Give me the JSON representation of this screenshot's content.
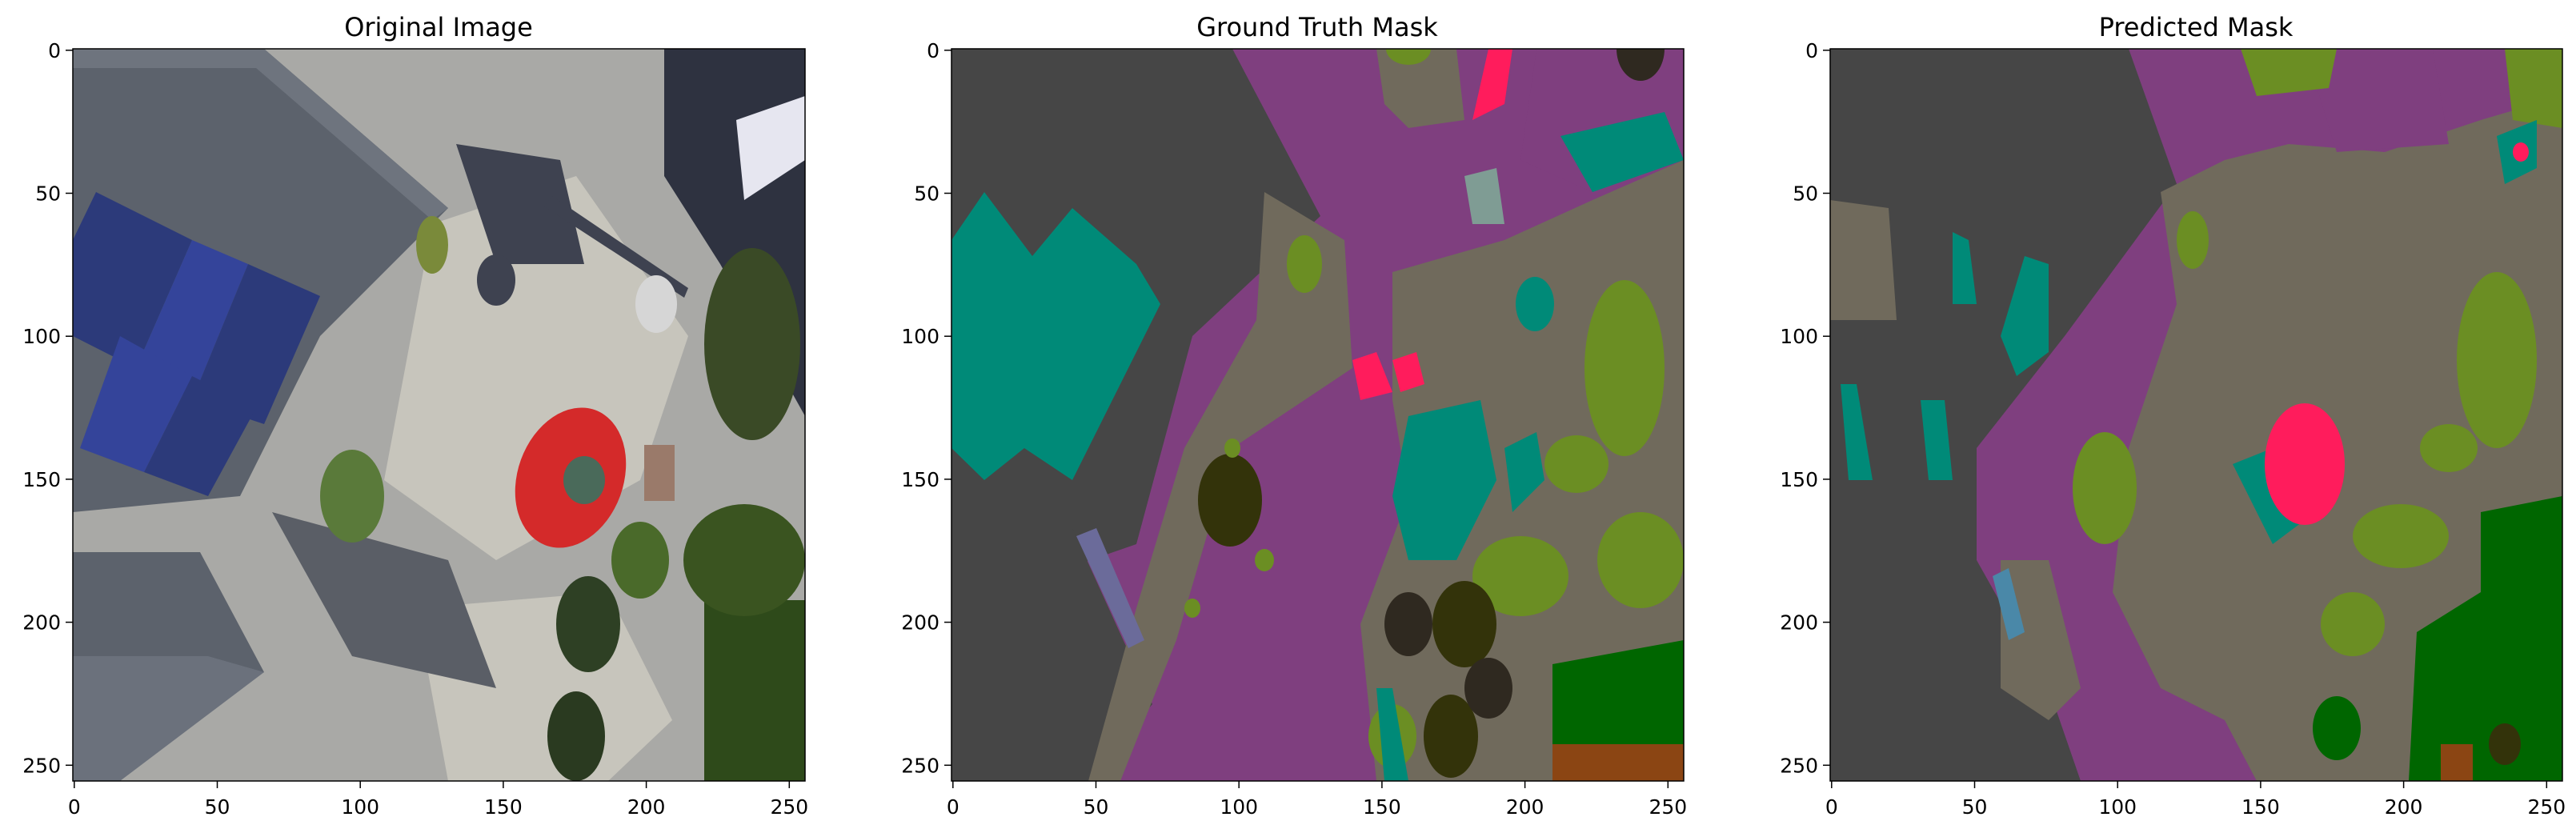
{
  "figure": {
    "panels": [
      {
        "title": "Original Image",
        "image_kind": "aerial-photo",
        "x_ticks": [
          "0",
          "50",
          "100",
          "150",
          "200",
          "250"
        ],
        "y_ticks": [
          "0",
          "50",
          "100",
          "150",
          "200",
          "250"
        ]
      },
      {
        "title": "Ground Truth Mask",
        "image_kind": "segmentation-mask",
        "x_ticks": [
          "0",
          "50",
          "100",
          "150",
          "200",
          "250"
        ],
        "y_ticks": [
          "0",
          "50",
          "100",
          "150",
          "200",
          "250"
        ]
      },
      {
        "title": "Predicted Mask",
        "image_kind": "segmentation-mask",
        "x_ticks": [
          "0",
          "50",
          "100",
          "150",
          "200",
          "250"
        ],
        "y_ticks": [
          "0",
          "50",
          "100",
          "150",
          "200",
          "250"
        ]
      }
    ],
    "axis_range": [
      0,
      255
    ],
    "tick_values": [
      0,
      50,
      100,
      150,
      200,
      250
    ],
    "palette": {
      "building": "#464646",
      "paved": "#7f3f7f",
      "ground": "#706a5c",
      "vegetation": "#6b8e23",
      "tree": "#006600",
      "roof": "#008a78",
      "vehicle": "#ff1c5c",
      "bush": "#33330a",
      "dirt": "#8b4513",
      "window": "#6b6b9a",
      "gray_obj": "#7f9c94",
      "dark_brown": "#2f2920"
    },
    "photo_colors": {
      "roof_gray": "#5c626c",
      "solar_blue": "#2c3a7a",
      "pavement": "#a9a9a6",
      "gravel": "#c7c5bc",
      "shadow": "#3e4250",
      "plant_green": "#5a7a3a",
      "car_red": "#d42a2a",
      "building_dark": "#2e3240"
    }
  }
}
